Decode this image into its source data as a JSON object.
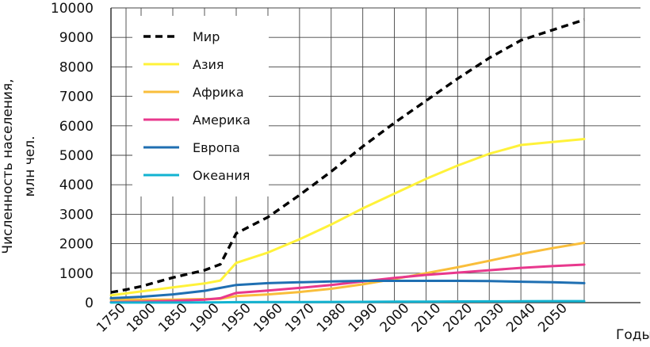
{
  "chart_data": {
    "type": "line",
    "ylabel_line1": "Численность населения,",
    "ylabel_line2": "млн чел.",
    "xlabel": "Годы",
    "ylim": [
      0,
      10000
    ],
    "grid": true,
    "legend_position": "top-left",
    "y_ticks": [
      "0",
      "1000",
      "2000",
      "3000",
      "4000",
      "5000",
      "6000",
      "7000",
      "8000",
      "9000",
      "10000"
    ],
    "x_ticks": [
      "1750",
      "1800",
      "1850",
      "1900",
      "1950",
      "1960",
      "1970",
      "1980",
      "1990",
      "2000",
      "2010",
      "2020",
      "2030",
      "2040",
      "2050"
    ],
    "series": [
      {
        "name": "Мир",
        "color": "#000000",
        "dashed": true,
        "values": [
          {
            "x": "1750",
            "y": 350
          },
          {
            "x": "1775",
            "y": 440
          },
          {
            "x": "1800",
            "y": 550
          },
          {
            "x": "1850",
            "y": 850
          },
          {
            "x": "1900",
            "y": 1100
          },
          {
            "x": "1925",
            "y": 1300
          },
          {
            "x": "1950",
            "y": 2350
          },
          {
            "x": "1960",
            "y": 2900
          },
          {
            "x": "1970",
            "y": 3650
          },
          {
            "x": "1980",
            "y": 4450
          },
          {
            "x": "1990",
            "y": 5300
          },
          {
            "x": "2000",
            "y": 6100
          },
          {
            "x": "2010",
            "y": 6850
          },
          {
            "x": "2020",
            "y": 7600
          },
          {
            "x": "2030",
            "y": 8300
          },
          {
            "x": "2040",
            "y": 8900
          },
          {
            "x": "2050",
            "y": 9250
          },
          {
            "x": "2060",
            "y": 9600
          }
        ]
      },
      {
        "name": "Азия",
        "color": "#FFF23A",
        "dashed": false,
        "values": [
          {
            "x": "1750",
            "y": 250
          },
          {
            "x": "1800",
            "y": 380
          },
          {
            "x": "1850",
            "y": 520
          },
          {
            "x": "1900",
            "y": 650
          },
          {
            "x": "1925",
            "y": 750
          },
          {
            "x": "1950",
            "y": 1350
          },
          {
            "x": "1960",
            "y": 1700
          },
          {
            "x": "1970",
            "y": 2150
          },
          {
            "x": "1980",
            "y": 2650
          },
          {
            "x": "1990",
            "y": 3200
          },
          {
            "x": "2000",
            "y": 3700
          },
          {
            "x": "2010",
            "y": 4200
          },
          {
            "x": "2020",
            "y": 4650
          },
          {
            "x": "2030",
            "y": 5050
          },
          {
            "x": "2040",
            "y": 5350
          },
          {
            "x": "2050",
            "y": 5450
          },
          {
            "x": "2060",
            "y": 5550
          }
        ]
      },
      {
        "name": "Африка",
        "color": "#F9BE3B",
        "dashed": false,
        "values": [
          {
            "x": "1750",
            "y": 100
          },
          {
            "x": "1800",
            "y": 100
          },
          {
            "x": "1850",
            "y": 100
          },
          {
            "x": "1900",
            "y": 120
          },
          {
            "x": "1925",
            "y": 130
          },
          {
            "x": "1950",
            "y": 220
          },
          {
            "x": "1960",
            "y": 280
          },
          {
            "x": "1970",
            "y": 360
          },
          {
            "x": "1980",
            "y": 470
          },
          {
            "x": "1990",
            "y": 620
          },
          {
            "x": "2000",
            "y": 800
          },
          {
            "x": "2010",
            "y": 1000
          },
          {
            "x": "2020",
            "y": 1200
          },
          {
            "x": "2030",
            "y": 1420
          },
          {
            "x": "2040",
            "y": 1650
          },
          {
            "x": "2050",
            "y": 1850
          },
          {
            "x": "2060",
            "y": 2030
          }
        ]
      },
      {
        "name": "Америка",
        "color": "#E8388D",
        "dashed": false,
        "values": [
          {
            "x": "1750",
            "y": 20
          },
          {
            "x": "1800",
            "y": 30
          },
          {
            "x": "1850",
            "y": 60
          },
          {
            "x": "1900",
            "y": 100
          },
          {
            "x": "1925",
            "y": 150
          },
          {
            "x": "1950",
            "y": 330
          },
          {
            "x": "1960",
            "y": 410
          },
          {
            "x": "1970",
            "y": 500
          },
          {
            "x": "1980",
            "y": 600
          },
          {
            "x": "1990",
            "y": 720
          },
          {
            "x": "2000",
            "y": 840
          },
          {
            "x": "2010",
            "y": 940
          },
          {
            "x": "2020",
            "y": 1020
          },
          {
            "x": "2030",
            "y": 1100
          },
          {
            "x": "2040",
            "y": 1180
          },
          {
            "x": "2050",
            "y": 1240
          },
          {
            "x": "2060",
            "y": 1290
          }
        ]
      },
      {
        "name": "Европа",
        "color": "#1F6FB2",
        "dashed": false,
        "values": [
          {
            "x": "1750",
            "y": 150
          },
          {
            "x": "1800",
            "y": 200
          },
          {
            "x": "1850",
            "y": 280
          },
          {
            "x": "1900",
            "y": 400
          },
          {
            "x": "1925",
            "y": 500
          },
          {
            "x": "1950",
            "y": 600
          },
          {
            "x": "1960",
            "y": 660
          },
          {
            "x": "1970",
            "y": 690
          },
          {
            "x": "1980",
            "y": 720
          },
          {
            "x": "1990",
            "y": 740
          },
          {
            "x": "2000",
            "y": 740
          },
          {
            "x": "2010",
            "y": 740
          },
          {
            "x": "2020",
            "y": 740
          },
          {
            "x": "2030",
            "y": 730
          },
          {
            "x": "2040",
            "y": 710
          },
          {
            "x": "2050",
            "y": 690
          },
          {
            "x": "2060",
            "y": 660
          }
        ]
      },
      {
        "name": "Океания",
        "color": "#12B3D1",
        "dashed": false,
        "values": [
          {
            "x": "1750",
            "y": 2
          },
          {
            "x": "1800",
            "y": 2
          },
          {
            "x": "1850",
            "y": 3
          },
          {
            "x": "1900",
            "y": 6
          },
          {
            "x": "1925",
            "y": 10
          },
          {
            "x": "1950",
            "y": 15
          },
          {
            "x": "1960",
            "y": 20
          },
          {
            "x": "1970",
            "y": 22
          },
          {
            "x": "1980",
            "y": 25
          },
          {
            "x": "1990",
            "y": 28
          },
          {
            "x": "2000",
            "y": 32
          },
          {
            "x": "2010",
            "y": 36
          },
          {
            "x": "2020",
            "y": 40
          },
          {
            "x": "2030",
            "y": 44
          },
          {
            "x": "2040",
            "y": 47
          },
          {
            "x": "2050",
            "y": 50
          },
          {
            "x": "2060",
            "y": 52
          }
        ]
      }
    ]
  }
}
